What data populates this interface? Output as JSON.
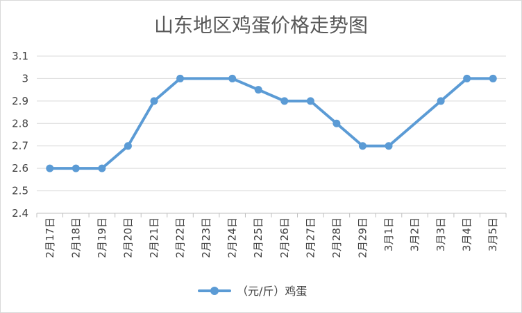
{
  "chart_data": {
    "type": "line",
    "title": "山东地区鸡蛋价格走势图",
    "xlabel": "",
    "ylabel": "",
    "categories": [
      "2月17日",
      "2月18日",
      "2月19日",
      "2月20日",
      "2月21日",
      "2月22日",
      "2月23日",
      "2月24日",
      "2月25日",
      "2月26日",
      "2月27日",
      "2月28日",
      "2月29日",
      "3月1日",
      "3月2日",
      "3月3日",
      "3月4日",
      "3月5日"
    ],
    "series": [
      {
        "name": "（元/斤）鸡蛋",
        "values": [
          2.6,
          2.6,
          2.6,
          2.7,
          2.9,
          3.0,
          null,
          3.0,
          2.95,
          2.9,
          2.9,
          2.8,
          2.7,
          2.7,
          null,
          2.9,
          3.0,
          3.0
        ]
      }
    ],
    "ylim": [
      2.4,
      3.1
    ],
    "yticks": [
      "2.4",
      "2.5",
      "2.6",
      "2.7",
      "2.8",
      "2.9",
      "3",
      "3.1"
    ],
    "grid": true,
    "legend_position": "bottom",
    "color": "#5b9bd5"
  }
}
